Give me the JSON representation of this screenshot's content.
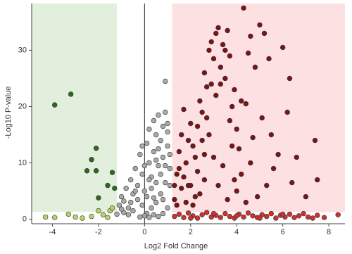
{
  "chart_data": {
    "type": "scatter",
    "xlabel": "Log2 Fold Change",
    "ylabel": "-Log10 P-value",
    "xlim": [
      -4.9,
      8.7
    ],
    "ylim": [
      -0.8,
      38.3
    ],
    "xticks": [
      -4,
      -2,
      0,
      2,
      4,
      6,
      8
    ],
    "yticks": [
      0,
      10,
      20,
      30
    ],
    "zero_line": true,
    "regions": [
      {
        "x": [
          -4.9,
          -1.2
        ],
        "y": [
          1.3,
          38.3
        ],
        "color": "#e2efdd"
      },
      {
        "x": [
          1.2,
          8.7
        ],
        "y": [
          1.3,
          38.3
        ],
        "color": "#fde0e1"
      }
    ],
    "series": [
      {
        "color": "#a8a8a8",
        "x": [
          -1.1,
          -1.0,
          -0.9,
          -0.8,
          -0.7,
          -0.6,
          -0.5,
          -0.4,
          -0.3,
          -0.2,
          -0.1,
          0.0,
          0.1,
          0.2,
          0.3,
          0.4,
          0.5,
          0.6,
          0.7,
          0.8,
          0.9,
          1.0,
          1.1,
          0.9,
          0.7,
          0.5,
          0.3,
          0.1,
          -0.1,
          -0.3,
          -0.5,
          -0.7,
          -0.9,
          1.0,
          0.8,
          0.6,
          0.4,
          0.2,
          0.0,
          -0.2,
          0.2,
          0.4,
          0.6,
          0.8,
          1.0,
          1.1,
          0.9,
          1.0,
          0.3,
          0.5,
          0.7,
          0.9,
          0.1,
          -0.4,
          -0.6,
          -1.0,
          -1.2,
          0.0,
          0.2,
          0.6,
          1.1,
          0.4,
          0.8,
          -0.1,
          0.5
        ],
        "y": [
          2.5,
          4.0,
          3.2,
          5.5,
          2.0,
          7.0,
          4.5,
          9.0,
          6.0,
          11.5,
          8.0,
          5.0,
          13.5,
          10.0,
          7.5,
          12.0,
          15.0,
          9.5,
          14.0,
          11.0,
          24.5,
          13.0,
          9.0,
          6.5,
          4.5,
          3.0,
          2.0,
          1.0,
          2.5,
          3.5,
          1.5,
          0.8,
          1.2,
          2.0,
          1.0,
          0.5,
          0.8,
          0.3,
          0.6,
          0.4,
          16.0,
          17.5,
          18.5,
          16.5,
          17.0,
          11.5,
          19.0,
          15.5,
          5.5,
          6.5,
          8.0,
          9.5,
          4.0,
          5.0,
          3.0,
          1.8,
          0.9,
          9.5,
          7.0,
          12.5,
          6.0,
          3.8,
          3.5,
          13.0,
          10.5
        ]
      },
      {
        "color": "#2e6b1e",
        "x": [
          -3.9,
          -3.2,
          -2.1,
          -2.3,
          -2.5,
          -2.1,
          -1.4,
          -1.6,
          -1.3,
          -2.0
        ],
        "y": [
          20.3,
          22.2,
          12.6,
          10.6,
          8.6,
          8.6,
          8.3,
          6.0,
          5.5,
          3.8
        ]
      },
      {
        "color": "#b5d36b",
        "x": [
          -4.3,
          -3.9,
          -3.0,
          -2.7,
          -2.3,
          -2.0,
          -1.8,
          -1.5,
          -1.4,
          -1.6,
          -3.3
        ],
        "y": [
          0.4,
          0.3,
          0.4,
          0.2,
          0.5,
          1.5,
          0.8,
          1.5,
          2.0,
          0.3,
          0.9
        ]
      },
      {
        "color": "#7a1416",
        "x": [
          1.3,
          1.4,
          1.5,
          1.6,
          1.7,
          1.8,
          1.9,
          2.0,
          2.1,
          2.2,
          2.3,
          2.4,
          2.5,
          2.6,
          2.7,
          2.8,
          2.9,
          3.0,
          3.1,
          3.2,
          3.3,
          3.4,
          3.5,
          3.6,
          3.7,
          3.8,
          3.9,
          4.0,
          4.1,
          4.2,
          4.3,
          4.4,
          4.5,
          4.6,
          4.7,
          4.8,
          5.0,
          5.2,
          5.4,
          5.6,
          5.8,
          6.0,
          6.2,
          6.4,
          6.6,
          7.0,
          7.4,
          7.5,
          5.1,
          5.3,
          4.9,
          3.0,
          2.8,
          2.6,
          2.4,
          2.2,
          2.0,
          1.8,
          1.6,
          1.4,
          3.2,
          3.4,
          3.6,
          3.8,
          4.0,
          2.9,
          3.1,
          2.7,
          2.5,
          3.3,
          3.5,
          1.5,
          1.9,
          2.3,
          4.2,
          4.6,
          3.7,
          2.1,
          1.7,
          5.5,
          6.3,
          2.6,
          3.9,
          4.4,
          1.3
        ],
        "y": [
          3.5,
          8,
          12,
          15,
          19.5,
          10,
          6,
          17,
          13,
          4,
          8.5,
          21,
          14,
          26,
          18,
          30,
          24,
          28.5,
          22,
          34,
          27,
          31,
          25,
          33.5,
          29,
          20,
          23,
          16,
          12.5,
          8,
          37.5,
          20.5,
          29.5,
          10,
          14.5,
          27,
          34.5,
          33,
          28.5,
          9,
          11.5,
          30.5,
          19,
          6.5,
          11,
          4,
          14,
          7,
          18,
          6,
          4,
          11,
          15,
          7,
          4.5,
          11,
          6,
          3,
          5.5,
          2.5,
          6,
          9.5,
          3.5,
          13,
          5,
          31.5,
          33,
          23.5,
          19,
          24,
          30,
          9,
          14,
          16.5,
          21,
          32.5,
          17.5,
          2.5,
          7.5,
          15,
          25,
          11.5,
          7,
          3,
          6
        ]
      },
      {
        "color": "#d03030",
        "x": [
          1.3,
          1.5,
          1.7,
          1.9,
          2.1,
          2.3,
          2.5,
          2.7,
          2.9,
          3.1,
          3.3,
          3.5,
          3.7,
          3.9,
          4.1,
          4.3,
          4.5,
          4.7,
          4.9,
          5.1,
          5.3,
          5.5,
          5.7,
          5.9,
          6.1,
          6.3,
          6.5,
          6.7,
          6.9,
          7.1,
          7.3,
          7.5,
          7.8,
          8.4,
          2.0,
          3.0,
          4.0,
          5.0,
          6.0
        ],
        "y": [
          0.5,
          0.9,
          0.3,
          1.1,
          0.6,
          0.2,
          0.8,
          1.2,
          0.4,
          0.7,
          0.3,
          1.0,
          0.5,
          0.2,
          0.9,
          0.4,
          1.1,
          0.6,
          0.3,
          0.8,
          0.5,
          1.0,
          0.2,
          0.7,
          0.4,
          0.9,
          0.3,
          0.6,
          1.0,
          0.4,
          0.2,
          0.7,
          0.3,
          0.8,
          0.2,
          1.0,
          0.6,
          0.2,
          0.9
        ]
      }
    ]
  }
}
